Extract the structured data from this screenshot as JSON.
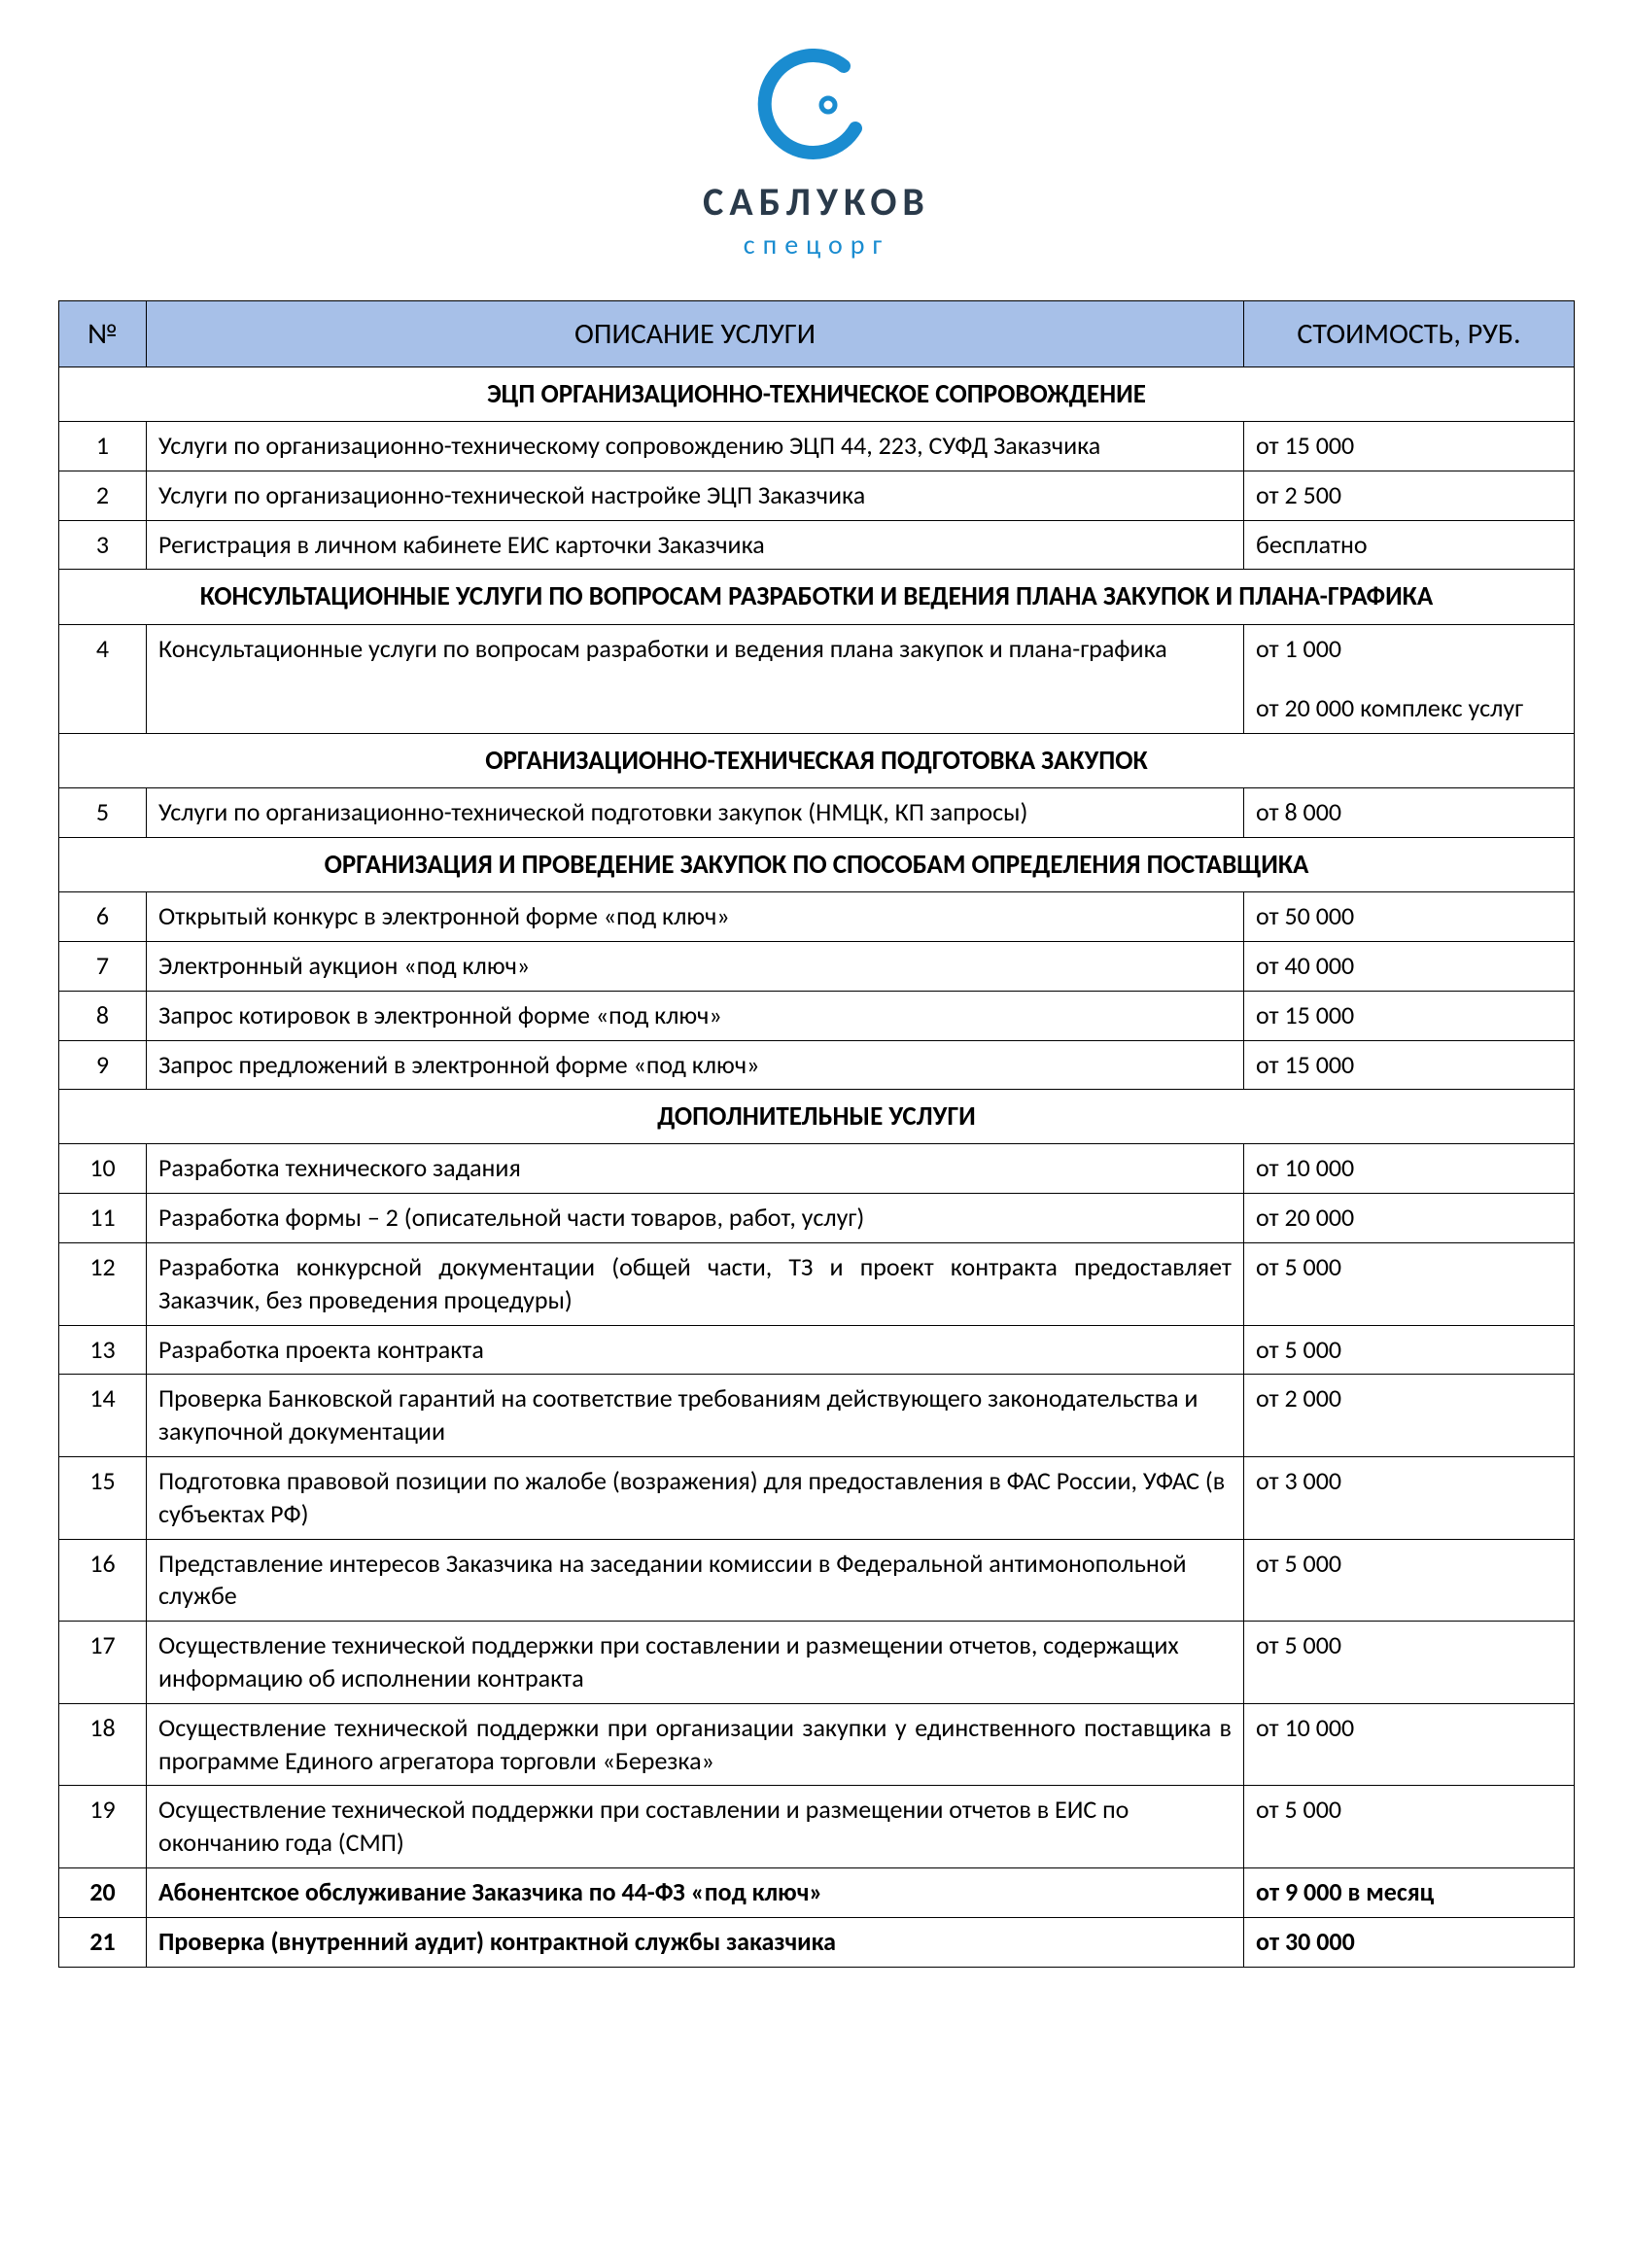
{
  "logo": {
    "title": "САБЛУКОВ",
    "subtitle": "спецорг",
    "ring_color": "#1a8cd0",
    "dot_color": "#1a8cd0",
    "title_color": "#2a3a4a"
  },
  "table": {
    "header_bg": "#a7c0e8",
    "border_color": "#000000",
    "columns": {
      "num": "№",
      "desc": "ОПИСАНИЕ УСЛУГИ",
      "cost": "СТОИМОСТЬ, РУБ."
    },
    "rows": [
      {
        "type": "section",
        "text": "ЭЦП ОРГАНИЗАЦИОННО-ТЕХНИЧЕСКОЕ СОПРОВОЖДЕНИЕ"
      },
      {
        "type": "item",
        "num": "1",
        "desc": "Услуги по организационно-техническому сопровождению ЭЦП 44, 223, СУФД Заказчика",
        "cost": "от 15 000"
      },
      {
        "type": "item",
        "num": "2",
        "desc": "Услуги по организационно-технической настройке ЭЦП Заказчика",
        "cost": "от 2 500"
      },
      {
        "type": "item",
        "num": "3",
        "desc": "Регистрация в личном кабинете ЕИС карточки Заказчика",
        "cost": "бесплатно"
      },
      {
        "type": "section",
        "text": "КОНСУЛЬТАЦИОННЫЕ УСЛУГИ ПО ВОПРОСАМ РАЗРАБОТКИ И ВЕДЕНИЯ ПЛАНА ЗАКУПОК И ПЛАНА-ГРАФИКА"
      },
      {
        "type": "item",
        "num": "4",
        "desc": "Консультационные услуги по вопросам разработки и ведения плана закупок    и плана-графика",
        "cost_multi": [
          "от 1 000",
          "от 20 000 комплекс услуг"
        ]
      },
      {
        "type": "section",
        "text": "ОРГАНИЗАЦИОННО-ТЕХНИЧЕСКАЯ ПОДГОТОВКА ЗАКУПОК"
      },
      {
        "type": "item",
        "num": "5",
        "desc": "Услуги по организационно-технической подготовки закупок (НМЦК, КП запросы)",
        "cost": "от 8 000"
      },
      {
        "type": "section",
        "text": "ОРГАНИЗАЦИЯ И ПРОВЕДЕНИЕ ЗАКУПОК ПО СПОСОБАМ ОПРЕДЕЛЕНИЯ ПОСТАВЩИКА"
      },
      {
        "type": "item",
        "num": "6",
        "desc": "Открытый конкурс в электронной форме «под ключ»",
        "cost": "от 50 000"
      },
      {
        "type": "item",
        "num": "7",
        "desc": "Электронный аукцион «под ключ»",
        "cost": "от 40 000"
      },
      {
        "type": "item",
        "num": "8",
        "desc": "Запрос котировок в электронной форме «под ключ»",
        "cost": "от 15 000"
      },
      {
        "type": "item",
        "num": "9",
        "desc": "Запрос предложений в электронной форме «под ключ»",
        "cost": "от 15 000"
      },
      {
        "type": "section",
        "text": "ДОПОЛНИТЕЛЬНЫЕ УСЛУГИ"
      },
      {
        "type": "item",
        "num": "10",
        "desc": "Разработка технического задания",
        "cost": "от 10 000"
      },
      {
        "type": "item",
        "num": "11",
        "desc": "Разработка формы – 2 (описательной части товаров, работ, услуг)",
        "cost": "от 20 000"
      },
      {
        "type": "item",
        "num": "12",
        "desc": "Разработка конкурсной документации (общей части, ТЗ и проект контракта предоставляет Заказчик, без проведения процедуры)",
        "cost": "от 5 000",
        "justify": true
      },
      {
        "type": "item",
        "num": "13",
        "desc": "Разработка проекта контракта",
        "cost": "от 5 000"
      },
      {
        "type": "item",
        "num": "14",
        "desc": "Проверка Банковской гарантий на соответствие требованиям действующего законодательства и закупочной документации",
        "cost": "от 2 000"
      },
      {
        "type": "item",
        "num": "15",
        "desc": "Подготовка правовой позиции по жалобе (возражения) для предоставления в ФАС России, УФАС (в субъектах РФ)",
        "cost": "от 3 000"
      },
      {
        "type": "item",
        "num": "16",
        "desc": "Представление интересов Заказчика на заседании комиссии в Федеральной антимонопольной службе",
        "cost": "от 5 000"
      },
      {
        "type": "item",
        "num": "17",
        "desc": "Осуществление технической поддержки при составлении и размещении отчетов, содержащих информацию об исполнении контракта",
        "cost": "от 5 000"
      },
      {
        "type": "item",
        "num": "18",
        "desc": "Осуществление технической поддержки при организации закупки у единственного поставщика в программе Единого агрегатора торговли «Березка»",
        "cost": "от 10 000",
        "justify": true
      },
      {
        "type": "item",
        "num": "19",
        "desc": "Осуществление технической поддержки при составлении и размещении отчетов в ЕИС по окончанию года (СМП)",
        "cost": "от 5 000"
      },
      {
        "type": "item",
        "num": "20",
        "desc": "Абонентское обслуживание Заказчика по 44-ФЗ «под ключ»",
        "cost": "от 9 000 в месяц",
        "bold": true
      },
      {
        "type": "item",
        "num": "21",
        "desc": "Проверка (внутренний аудит) контрактной службы заказчика",
        "cost": "от 30 000",
        "bold": true
      }
    ]
  }
}
